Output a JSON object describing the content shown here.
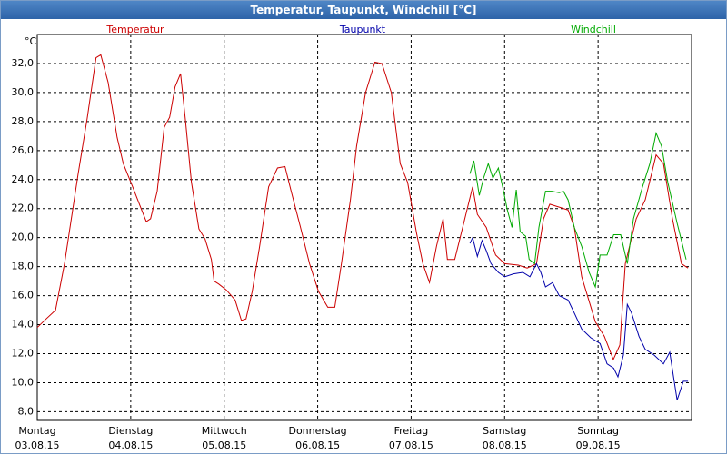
{
  "chart_data": {
    "type": "line",
    "title": "Temperatur, Taupunkt, Windchill [°C]",
    "y_label": "°C",
    "xlim": [
      0,
      168
    ],
    "ylim": [
      7.4,
      34
    ],
    "xticks": [
      {
        "value": 0,
        "label": "Montag"
      },
      {
        "value": 24,
        "label": "Dienstag"
      },
      {
        "value": 48,
        "label": "Mittwoch"
      },
      {
        "value": 72,
        "label": "Donnerstag"
      },
      {
        "value": 96,
        "label": "Freitag"
      },
      {
        "value": 120,
        "label": "Samstag"
      },
      {
        "value": 144,
        "label": "Sonntag"
      }
    ],
    "xtick_dates": [
      "03.08.15",
      "04.08.15",
      "05.08.15",
      "06.08.15",
      "07.08.15",
      "08.08.15",
      "09.08.15"
    ],
    "yticks": [
      {
        "value": 8,
        "label": "8,0"
      },
      {
        "value": 10,
        "label": "10,0"
      },
      {
        "value": 12,
        "label": "12,0"
      },
      {
        "value": 14,
        "label": "14,0"
      },
      {
        "value": 16,
        "label": "16,0"
      },
      {
        "value": 18,
        "label": "18,0"
      },
      {
        "value": 20,
        "label": "20,0"
      },
      {
        "value": 22,
        "label": "22,0"
      },
      {
        "value": 24,
        "label": "24,0"
      },
      {
        "value": 26,
        "label": "26,0"
      },
      {
        "value": 28,
        "label": "28,0"
      },
      {
        "value": 30,
        "label": "30,0"
      },
      {
        "value": 32,
        "label": "32,0"
      }
    ],
    "grid": true,
    "series": [
      {
        "name": "Temperatur",
        "color": "#cc0000",
        "x": [
          0,
          1.9,
          4.7,
          7,
          10.5,
          12.8,
          15.1,
          16.3,
          18.2,
          20.5,
          22.1,
          24.5,
          26.8,
          28,
          29.1,
          30.8,
          32.6,
          34,
          35.4,
          36.8,
          38,
          39.6,
          41.5,
          43.1,
          44.7,
          45.4,
          46.6,
          48.5,
          50.8,
          52.4,
          53.6,
          55.2,
          57.1,
          59.4,
          61.7,
          63.6,
          65.2,
          67.6,
          69.9,
          72.2,
          74.6,
          76.4,
          78.1,
          80.4,
          82,
          84.3,
          86.7,
          88.5,
          90.9,
          93.2,
          95.1,
          97.4,
          99,
          100.7,
          102.5,
          104.2,
          105.3,
          107.2,
          109.5,
          111.8,
          113,
          115.3,
          117.7,
          120,
          123.5,
          125.8,
          128.2,
          130,
          131.6,
          134,
          136.3,
          137.9,
          139.8,
          143.3,
          145.6,
          147.9,
          149.6,
          151,
          153.8,
          156.1,
          158.9,
          160.8,
          163.1,
          165.4,
          167.1
        ],
        "values": [
          13.8,
          14.3,
          15,
          18.2,
          24.4,
          28.2,
          32.4,
          32.6,
          30.7,
          26.9,
          25.1,
          23.5,
          21.9,
          21.1,
          21.3,
          23.2,
          27.6,
          28.3,
          30.4,
          31.3,
          28.2,
          23.8,
          20.6,
          19.9,
          18.5,
          17,
          16.8,
          16.4,
          15.7,
          14.3,
          14.4,
          16.3,
          19.4,
          23.5,
          24.8,
          24.9,
          23.2,
          20.7,
          18.2,
          16.3,
          15.2,
          15.2,
          18.2,
          22.6,
          26.3,
          30,
          32.1,
          32,
          30,
          25.1,
          23.8,
          20.3,
          18.2,
          16.9,
          19.4,
          21.3,
          18.5,
          18.5,
          21,
          23.5,
          21.6,
          20.7,
          18.8,
          18.2,
          18.1,
          17.9,
          18.2,
          21.3,
          22.3,
          22.1,
          21.9,
          20.7,
          17.3,
          14.2,
          13.2,
          11.6,
          12.6,
          18.2,
          21.3,
          22.6,
          25.7,
          25.1,
          21.3,
          18.2,
          17.9
        ]
      },
      {
        "name": "Taupunkt",
        "color": "#0000aa",
        "x": [
          111.1,
          111.8,
          113,
          114.2,
          115.3,
          116.5,
          118.4,
          120,
          122.3,
          124.7,
          126.5,
          128.2,
          129.3,
          130.5,
          132.3,
          134,
          136.3,
          137.9,
          139.8,
          142.1,
          144.5,
          146.3,
          148,
          149.1,
          150.5,
          151.5,
          152.6,
          154.5,
          156.1,
          158.4,
          160.8,
          162.4,
          164.3,
          165.9,
          167.1
        ],
        "values": [
          19.6,
          20,
          18.7,
          19.8,
          19.1,
          18.2,
          17.6,
          17.3,
          17.5,
          17.6,
          17.3,
          18.2,
          17.6,
          16.6,
          16.9,
          16,
          15.7,
          14.8,
          13.7,
          13.1,
          12.7,
          11.3,
          11,
          10.4,
          11.9,
          15.4,
          14.8,
          13.2,
          12.3,
          11.9,
          11.3,
          12.1,
          8.8,
          10.1,
          10.1
        ]
      },
      {
        "name": "Windchill",
        "color": "#00aa00",
        "x": [
          111.1,
          112.1,
          113.5,
          114.6,
          115.8,
          117,
          118.4,
          119.5,
          120.7,
          121.9,
          123,
          124,
          125.4,
          126.3,
          127.7,
          128.8,
          130.5,
          132.1,
          134,
          135.1,
          136.3,
          137.9,
          139.8,
          141.7,
          143.3,
          144.5,
          146.3,
          148,
          149.8,
          151.5,
          153.1,
          155.4,
          157.3,
          158.9,
          160.3,
          161.9,
          164.3,
          166.6
        ],
        "values": [
          24.4,
          25.3,
          22.9,
          24.1,
          25.1,
          24.1,
          24.8,
          23.5,
          21.9,
          20.7,
          23.3,
          20.4,
          20.1,
          18.5,
          18.2,
          20.7,
          23.2,
          23.2,
          23.1,
          23.2,
          22.6,
          20.7,
          19.4,
          17.6,
          16.6,
          18.8,
          18.8,
          20.2,
          20.2,
          18.2,
          21.3,
          23.5,
          25.1,
          27.2,
          26.3,
          23.8,
          21,
          18.5
        ]
      }
    ]
  }
}
